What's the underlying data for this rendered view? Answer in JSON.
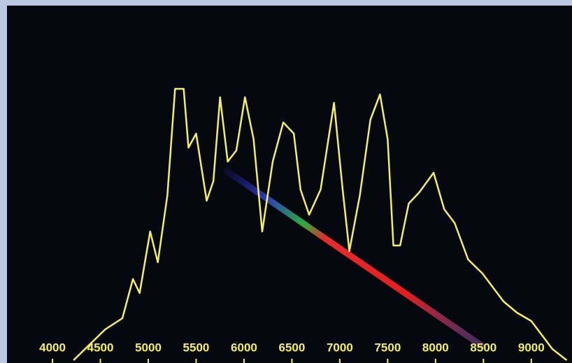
{
  "chart_data": {
    "type": "line",
    "x": [
      4220,
      4550,
      4730,
      4840,
      4910,
      5020,
      5100,
      5200,
      5280,
      5370,
      5420,
      5500,
      5610,
      5680,
      5750,
      5830,
      5920,
      6010,
      6100,
      6190,
      6300,
      6410,
      6520,
      6590,
      6680,
      6800,
      6940,
      7030,
      7100,
      7210,
      7320,
      7420,
      7500,
      7560,
      7630,
      7720,
      7830,
      7980,
      8090,
      8200,
      8340,
      8490,
      8600,
      8710,
      8850,
      9000,
      9110,
      9220,
      9370
    ],
    "series": [
      {
        "color": "#f3f05a",
        "values": [
          0,
          11,
          15,
          29,
          24,
          46,
          35,
          59,
          97,
          97,
          76,
          81,
          57,
          64,
          94,
          71,
          75,
          94,
          79,
          46,
          71,
          85,
          81,
          61,
          52,
          61,
          92,
          61,
          39,
          59,
          86,
          95,
          79,
          41,
          41,
          56,
          60,
          67,
          54,
          49,
          36,
          31,
          26,
          21,
          17,
          14,
          9,
          4,
          0
        ]
      }
    ],
    "xlim": [
      3525,
      9425
    ],
    "xticks": [
      4000,
      4500,
      5000,
      5500,
      6000,
      6500,
      7000,
      7500,
      8000,
      8500,
      9000
    ],
    "ylim": [
      0,
      100
    ]
  }
}
